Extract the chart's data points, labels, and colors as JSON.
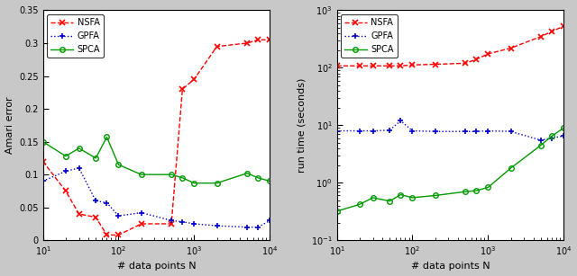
{
  "left": {
    "xlabel": "# data points N",
    "ylabel": "Amari error",
    "xlim": [
      10,
      10000
    ],
    "ylim": [
      0,
      0.35
    ],
    "nsfa_x": [
      10,
      20,
      30,
      50,
      70,
      100,
      200,
      500,
      700,
      1000,
      2000,
      5000,
      7000,
      10000
    ],
    "nsfa_y": [
      0.12,
      0.075,
      0.04,
      0.035,
      0.008,
      0.008,
      0.025,
      0.025,
      0.23,
      0.245,
      0.295,
      0.3,
      0.305,
      0.305
    ],
    "gpfa_x": [
      10,
      20,
      30,
      50,
      70,
      100,
      200,
      500,
      700,
      1000,
      2000,
      5000,
      7000,
      10000
    ],
    "gpfa_y": [
      0.09,
      0.105,
      0.11,
      0.06,
      0.057,
      0.037,
      0.042,
      0.03,
      0.028,
      0.025,
      0.022,
      0.02,
      0.02,
      0.03
    ],
    "spca_x": [
      10,
      20,
      30,
      50,
      70,
      100,
      200,
      500,
      700,
      1000,
      2000,
      5000,
      7000,
      10000
    ],
    "spca_y": [
      0.15,
      0.128,
      0.14,
      0.125,
      0.157,
      0.115,
      0.1,
      0.1,
      0.095,
      0.087,
      0.087,
      0.102,
      0.095,
      0.09
    ]
  },
  "right": {
    "xlabel": "# data points N",
    "ylabel": "run time (seconds)",
    "xlim": [
      10,
      10000
    ],
    "ylim_log": [
      -1,
      3
    ],
    "nsfa_x": [
      10,
      20,
      30,
      50,
      70,
      100,
      200,
      500,
      700,
      1000,
      2000,
      5000,
      7000,
      10000
    ],
    "nsfa_y": [
      108,
      108,
      108,
      108,
      108,
      112,
      115,
      120,
      140,
      175,
      220,
      350,
      430,
      530
    ],
    "gpfa_x": [
      10,
      20,
      30,
      50,
      70,
      100,
      200,
      500,
      700,
      1000,
      2000,
      5000,
      7000,
      10000
    ],
    "gpfa_y": [
      8.0,
      8.0,
      8.0,
      8.2,
      12.0,
      8.0,
      7.8,
      7.8,
      7.8,
      8.0,
      7.8,
      5.5,
      6.0,
      6.5
    ],
    "spca_x": [
      10,
      20,
      30,
      50,
      70,
      100,
      200,
      500,
      700,
      1000,
      2000,
      5000,
      7000,
      10000
    ],
    "spca_y": [
      0.32,
      0.42,
      0.55,
      0.48,
      0.62,
      0.55,
      0.6,
      0.7,
      0.73,
      0.83,
      1.8,
      4.5,
      6.5,
      9.0
    ]
  },
  "nsfa_color": "#ff0000",
  "gpfa_color": "#0000cc",
  "spca_color": "#009900",
  "bg_color": "#ffffff",
  "figure_bg": "#c8c8c8"
}
